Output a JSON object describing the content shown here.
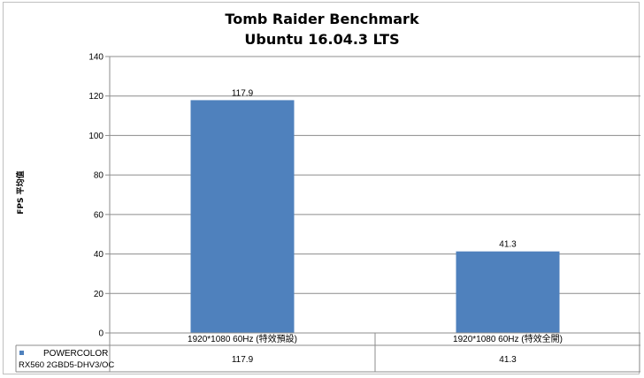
{
  "chart_data": {
    "type": "bar",
    "title": "Tomb Raider Benchmark",
    "subtitle": "Ubuntu 16.04.3 LTS",
    "ylabel": "FPS 平均值",
    "xlabel": "",
    "ylim": [
      0,
      140
    ],
    "ytick_step": 20,
    "grid": true,
    "categories": [
      "1920*1080 60Hz (特效預設)",
      "1920*1080 60Hz (特效全開)"
    ],
    "series": [
      {
        "name": "POWERCOLOR RX560 2GBD5-DHV3/OC",
        "name_lines": [
          "POWERCOLOR",
          "RX560 2GBD5-DHV3/OC"
        ],
        "values": [
          117.9,
          41.3
        ],
        "color": "#4f81bd"
      }
    ],
    "data_table": {
      "rows": [
        {
          "series": "POWERCOLOR RX560 2GBD5-DHV3/OC",
          "cells": [
            "117.9",
            "41.3"
          ]
        }
      ]
    }
  }
}
